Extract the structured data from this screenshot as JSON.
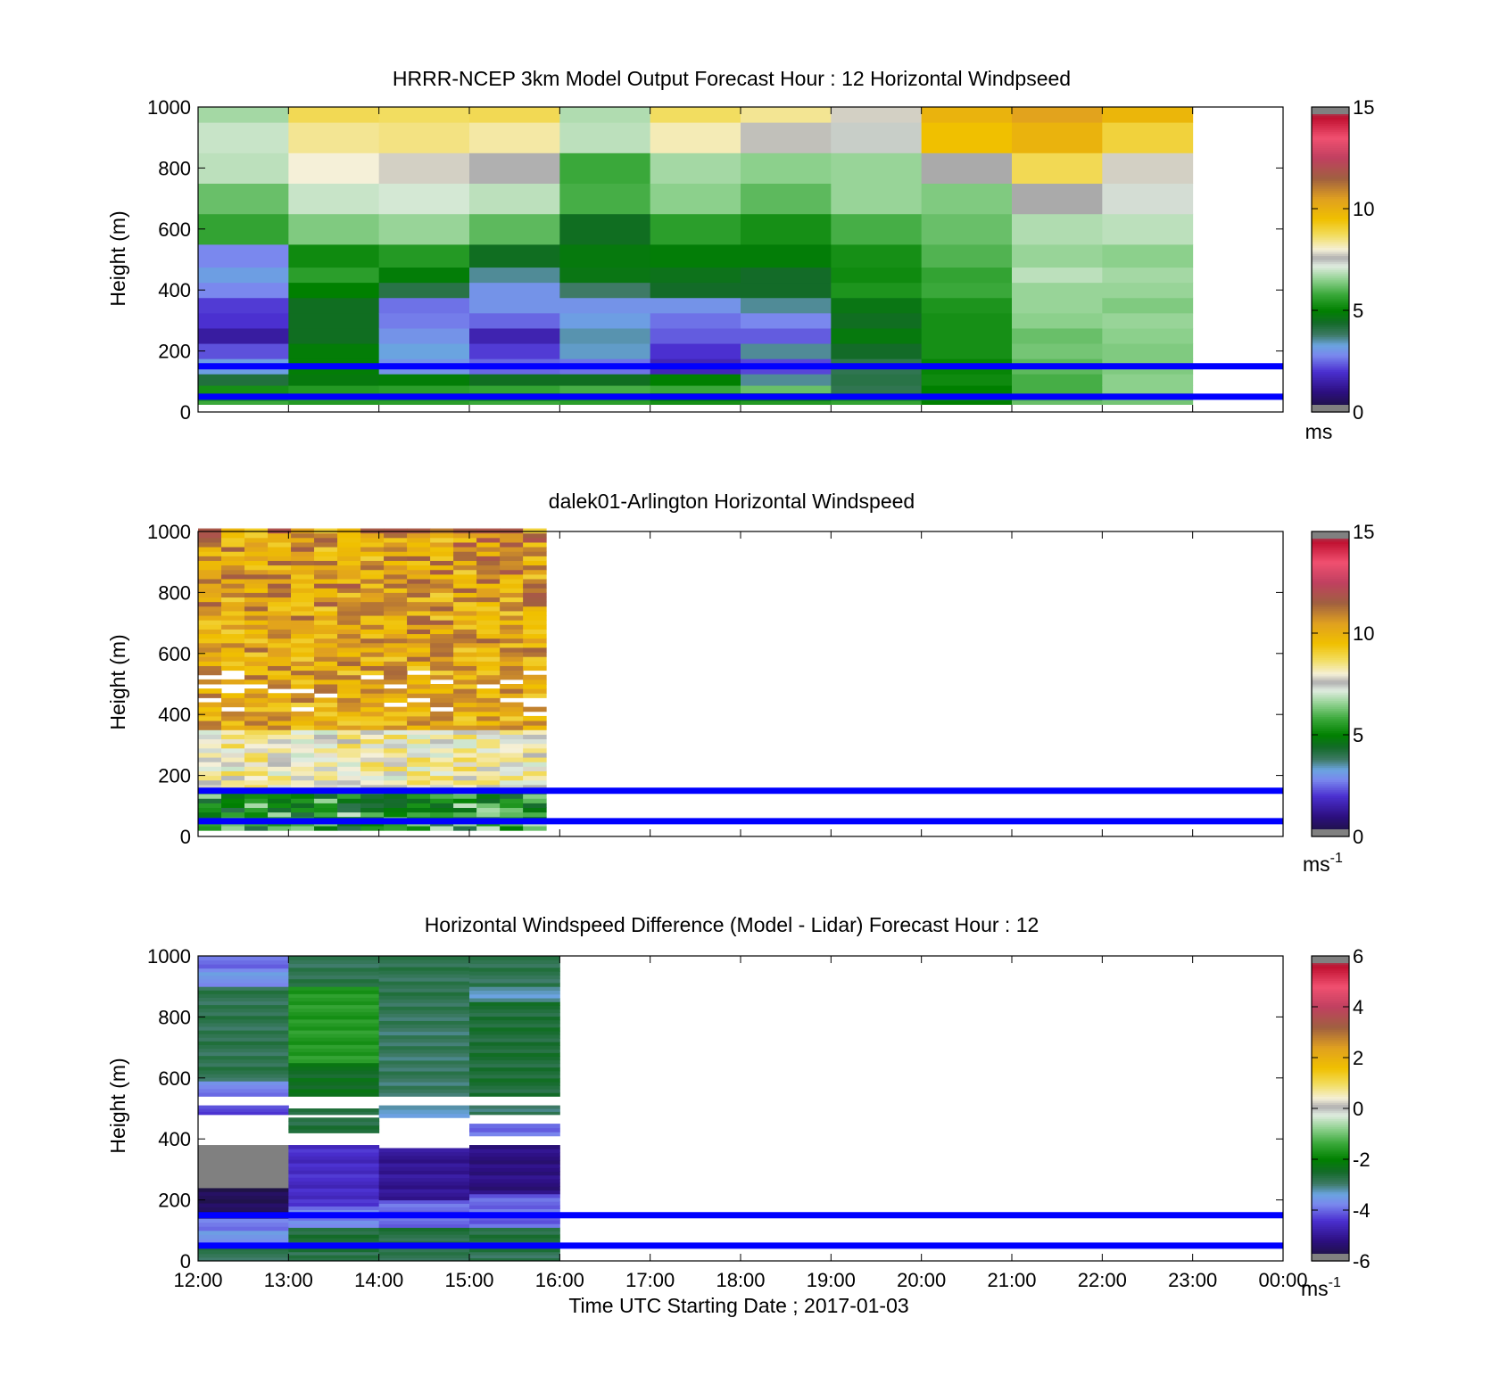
{
  "figure": {
    "xlabel": "Time UTC  Starting Date ; 2017-01-03",
    "xticks": [
      "12:00",
      "13:00",
      "14:00",
      "15:00",
      "16:00",
      "17:00",
      "18:00",
      "19:00",
      "20:00",
      "21:00",
      "22:00",
      "23:00",
      "00:00"
    ]
  },
  "chart_data": [
    {
      "type": "heatmap",
      "title": "HRRR-NCEP 3km Model Output   Forecast Hour : 12 Horizontal Windpseed",
      "ylabel": "Height (m)",
      "ylim": [
        0,
        1000
      ],
      "yticks": [
        "0",
        "200",
        "400",
        "600",
        "800",
        "1000"
      ],
      "x_range_hours": [
        12,
        24
      ],
      "data_coverage_hours": [
        12,
        23
      ],
      "colorbar": {
        "range": [
          0,
          15
        ],
        "ticks": [
          "0",
          "5",
          "10",
          "15"
        ],
        "unit": "ms"
      },
      "reference_lines_m": [
        50,
        150
      ],
      "reference_line_color": "#0000ff",
      "columns_hour_start": [
        12,
        13,
        14,
        15,
        16,
        17,
        18,
        19,
        20,
        21,
        22
      ],
      "levels_m": [
        25,
        50,
        75,
        100,
        150,
        200,
        250,
        300,
        350,
        400,
        450,
        500,
        600,
        700,
        800,
        900,
        1000
      ],
      "values": [
        [
          5.8,
          5.3,
          5.3,
          4.2,
          3.2,
          2.3,
          1.4,
          2.0,
          2.1,
          2.8,
          3.2,
          2.8,
          5.7,
          6.2,
          6.9,
          7.0,
          6.7
        ],
        [
          5.5,
          5.5,
          5.5,
          4.8,
          4.9,
          4.9,
          4.5,
          4.5,
          4.5,
          5.0,
          5.6,
          5.2,
          6.4,
          7.0,
          8.0,
          8.4,
          8.8
        ],
        [
          5.6,
          5.4,
          5.6,
          4.9,
          3.0,
          3.3,
          3.0,
          2.7,
          2.6,
          4.1,
          4.9,
          5.5,
          6.6,
          7.1,
          7.8,
          8.5,
          8.7
        ],
        [
          5.8,
          5.2,
          5.7,
          4.5,
          2.5,
          2.1,
          1.6,
          2.5,
          3.0,
          3.0,
          3.6,
          4.5,
          6.1,
          6.9,
          7.6,
          8.3,
          8.8
        ],
        [
          5.6,
          5.4,
          5.9,
          4.5,
          2.6,
          3.4,
          3.5,
          3.2,
          3.0,
          3.8,
          4.7,
          4.8,
          4.5,
          5.9,
          5.8,
          6.9,
          6.8
        ],
        [
          5.3,
          5.0,
          5.8,
          5.0,
          1.7,
          2.0,
          2.4,
          2.6,
          3.0,
          4.4,
          4.6,
          4.9,
          5.6,
          6.5,
          6.7,
          8.2,
          8.7
        ],
        [
          5.5,
          4.7,
          6.2,
          3.6,
          2.2,
          3.6,
          2.4,
          2.8,
          3.6,
          4.4,
          4.4,
          4.9,
          5.3,
          6.1,
          6.5,
          7.7,
          8.4
        ],
        [
          5.7,
          5.3,
          4.0,
          4.1,
          4.0,
          4.4,
          4.8,
          4.5,
          4.7,
          5.4,
          5.2,
          5.3,
          5.9,
          6.6,
          6.6,
          7.4,
          7.8
        ],
        [
          5.0,
          5.1,
          5.0,
          5.2,
          5.1,
          5.3,
          5.3,
          5.3,
          5.4,
          5.8,
          5.7,
          6.0,
          6.2,
          6.4,
          8.5,
          9.5,
          9.9
        ],
        [
          6.2,
          6.0,
          5.9,
          5.9,
          6.1,
          6.3,
          6.2,
          6.5,
          6.6,
          6.6,
          6.9,
          6.6,
          6.8,
          6.8,
          8.8,
          9.9,
          10.4
        ],
        [
          6.3,
          6.3,
          6.5,
          6.5,
          6.4,
          6.4,
          6.5,
          6.6,
          6.4,
          6.6,
          6.7,
          6.5,
          6.9,
          7.3,
          7.8,
          9.0,
          9.8
        ]
      ],
      "note_colors": {
        "20:00 @ 800m": "#aaaaaa",
        "21:00 @ 700m": "#aaaaaa"
      }
    },
    {
      "type": "heatmap",
      "title": "dalek01-Arlington  Horizontal Windspeed",
      "ylabel": "Height (m)",
      "ylim": [
        0,
        1000
      ],
      "yticks": [
        "0",
        "200",
        "400",
        "600",
        "800",
        "1000"
      ],
      "x_range_hours": [
        12,
        24
      ],
      "data_coverage_hours": [
        12,
        15.85
      ],
      "colorbar": {
        "range": [
          0,
          15
        ],
        "ticks": [
          "0",
          "5",
          "10",
          "15"
        ],
        "unit": "ms",
        "unit_exp": "-1"
      },
      "reference_lines_m": [
        50,
        150
      ],
      "reference_line_color": "#0000ff",
      "summary": {
        "below_150m_ms": [
          4,
          7
        ],
        "150_to_350m_ms": [
          7,
          9
        ],
        "350_to_1000m_ms": [
          9,
          12
        ]
      }
    },
    {
      "type": "heatmap",
      "title": "Horizontal Windspeed Difference (Model - Lidar) Forecast Hour : 12",
      "ylabel": "Height (m)",
      "ylim": [
        0,
        1000
      ],
      "yticks": [
        "0",
        "200",
        "400",
        "600",
        "800",
        "1000"
      ],
      "x_range_hours": [
        12,
        24
      ],
      "data_coverage_hours": [
        12,
        16
      ],
      "colorbar": {
        "range": [
          -6,
          6
        ],
        "ticks": [
          "-6",
          "-4",
          "-2",
          "0",
          "2",
          "4",
          "6"
        ],
        "unit": "ms",
        "unit_exp": "-1"
      },
      "reference_lines_m": [
        50,
        150
      ],
      "reference_line_color": "#0000ff",
      "columns_hour_start": [
        12,
        13,
        14,
        15
      ],
      "bands": [
        [
          {
            "from": 0,
            "to": 60,
            "v": -2.8
          },
          {
            "from": 60,
            "to": 100,
            "v": -3.5
          },
          {
            "from": 100,
            "to": 140,
            "v": -3.8
          },
          {
            "from": 140,
            "to": 240,
            "v": -5.6
          },
          {
            "from": 240,
            "to": 380,
            "v": -7
          },
          {
            "from": 380,
            "to": 480,
            "v": null
          },
          {
            "from": 480,
            "to": 510,
            "v": -4.2
          },
          {
            "from": 510,
            "to": 540,
            "v": null
          },
          {
            "from": 540,
            "to": 590,
            "v": -3.8
          },
          {
            "from": 590,
            "to": 900,
            "v": -2.8
          },
          {
            "from": 900,
            "to": 960,
            "v": -3.6
          },
          {
            "from": 960,
            "to": 1000,
            "v": -3.9
          }
        ],
        [
          {
            "from": 0,
            "to": 30,
            "v": -2.8
          },
          {
            "from": 30,
            "to": 110,
            "v": -2.6
          },
          {
            "from": 110,
            "to": 180,
            "v": -3.8
          },
          {
            "from": 180,
            "to": 380,
            "v": -4.5
          },
          {
            "from": 380,
            "to": 420,
            "v": null
          },
          {
            "from": 420,
            "to": 470,
            "v": -2.7
          },
          {
            "from": 470,
            "to": 480,
            "v": null
          },
          {
            "from": 480,
            "to": 500,
            "v": -2.8
          },
          {
            "from": 500,
            "to": 540,
            "v": null
          },
          {
            "from": 540,
            "to": 650,
            "v": -2.4
          },
          {
            "from": 650,
            "to": 900,
            "v": -1.6
          },
          {
            "from": 900,
            "to": 1000,
            "v": -2.8
          }
        ],
        [
          {
            "from": 0,
            "to": 30,
            "v": -2.8
          },
          {
            "from": 30,
            "to": 110,
            "v": -2.7
          },
          {
            "from": 110,
            "to": 200,
            "v": -4.0
          },
          {
            "from": 200,
            "to": 370,
            "v": -5.0
          },
          {
            "from": 370,
            "to": 470,
            "v": null
          },
          {
            "from": 470,
            "to": 510,
            "v": -3.3
          },
          {
            "from": 510,
            "to": 540,
            "v": null
          },
          {
            "from": 540,
            "to": 800,
            "v": -2.9
          },
          {
            "from": 800,
            "to": 1000,
            "v": -2.8
          }
        ],
        [
          {
            "from": 0,
            "to": 30,
            "v": -2.8
          },
          {
            "from": 30,
            "to": 110,
            "v": -2.7
          },
          {
            "from": 110,
            "to": 220,
            "v": -4.0
          },
          {
            "from": 220,
            "to": 380,
            "v": -5.2
          },
          {
            "from": 380,
            "to": 410,
            "v": null
          },
          {
            "from": 410,
            "to": 450,
            "v": -3.9
          },
          {
            "from": 450,
            "to": 480,
            "v": null
          },
          {
            "from": 480,
            "to": 510,
            "v": -2.9
          },
          {
            "from": 510,
            "to": 540,
            "v": null
          },
          {
            "from": 540,
            "to": 850,
            "v": -2.6
          },
          {
            "from": 850,
            "to": 900,
            "v": -3.2
          },
          {
            "from": 900,
            "to": 1000,
            "v": -2.8
          }
        ]
      ]
    }
  ]
}
